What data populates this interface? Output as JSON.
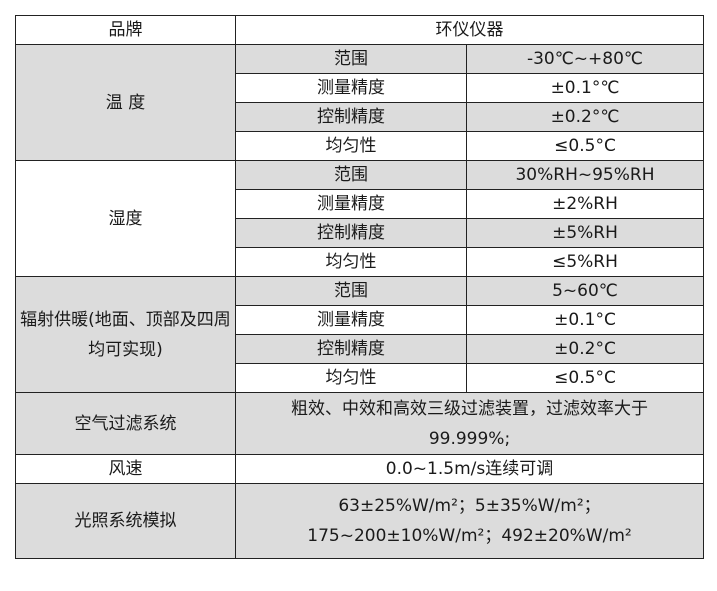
{
  "header": {
    "brand_label": "品牌",
    "brand_value": "环仪仪器"
  },
  "groups": [
    {
      "label": "温 度",
      "rows": [
        {
          "k": "范围",
          "v": "-30℃~+80℃"
        },
        {
          "k": "测量精度",
          "v": "±0.1°℃"
        },
        {
          "k": "控制精度",
          "v": "±0.2°℃"
        },
        {
          "k": "均匀性",
          "v": "≤0.5°C"
        }
      ]
    },
    {
      "label": "湿度",
      "rows": [
        {
          "k": "范围",
          "v": "30%RH~95%RH"
        },
        {
          "k": "测量精度",
          "v": "±2%RH"
        },
        {
          "k": "控制精度",
          "v": "±5%RH"
        },
        {
          "k": "均匀性",
          "v": "≤5%RH"
        }
      ]
    },
    {
      "label": "辐射供暖(地面、顶部及四周均可实现)",
      "rows": [
        {
          "k": "范围",
          "v": "5~60℃"
        },
        {
          "k": "测量精度",
          "v": "±0.1°C"
        },
        {
          "k": "控制精度",
          "v": "±0.2°C"
        },
        {
          "k": "均匀性",
          "v": "≤0.5°C"
        }
      ]
    }
  ],
  "air": {
    "label": "空气过滤系统",
    "line1": "粗效、中效和高效三级过滤装置，过滤效率大于",
    "line2": "99.999%;"
  },
  "wind": {
    "label": "风速",
    "value": "0.0~1.5m/s连续可调"
  },
  "light": {
    "label": "光照系统模拟",
    "line1": "63±25%W/m²；5±35%W/m²；",
    "line2": "175~200±10%W/m²；492±20%W/m²"
  }
}
